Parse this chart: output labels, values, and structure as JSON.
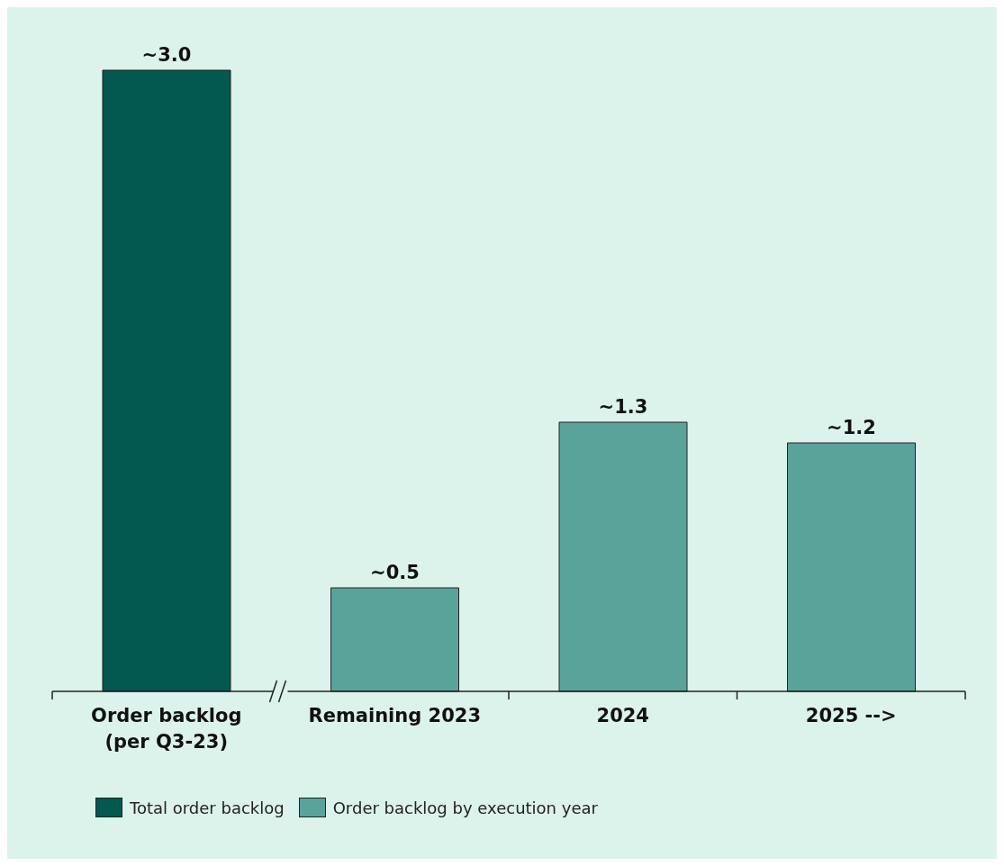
{
  "chart_data": {
    "type": "bar",
    "categories": [
      "Order backlog\n(per Q3-23)",
      "Remaining 2023",
      "2024",
      "2025 -->"
    ],
    "stacked": true,
    "legend": "bottom left",
    "series": [
      {
        "name": "Total order backlog",
        "color": "#03594f",
        "values": [
          3.0,
          null,
          null,
          null
        ],
        "value_labels": [
          "~3.0",
          null,
          null,
          null
        ]
      },
      {
        "name": "Order backlog by execution year",
        "color": "#5aa39a",
        "values": [
          null,
          0.5,
          1.3,
          1.2
        ],
        "value_labels": [
          null,
          "~0.5",
          "~1.3",
          "~1.2"
        ]
      }
    ]
  }
}
